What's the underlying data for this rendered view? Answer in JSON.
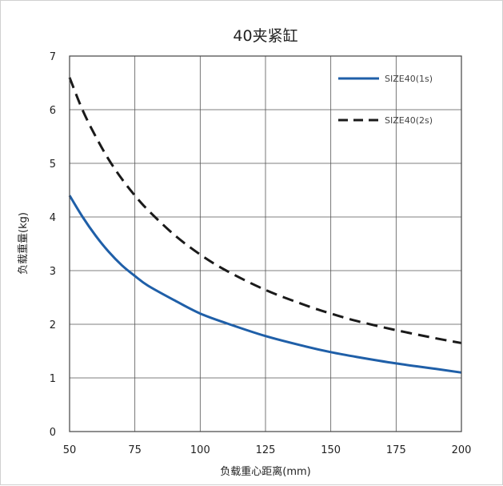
{
  "chart_data": {
    "type": "line",
    "title": "40夹紧缸",
    "xlabel": "负载重心距离(mm)",
    "ylabel": "负载重量(kg)",
    "xlim": [
      50,
      200
    ],
    "ylim": [
      0,
      7
    ],
    "x_ticks": [
      "50",
      "75",
      "100",
      "125",
      "150",
      "175",
      "200"
    ],
    "y_ticks": [
      "0",
      "1",
      "2",
      "3",
      "4",
      "5",
      "6",
      "7"
    ],
    "grid": true,
    "legend_position": "top-right",
    "series": [
      {
        "name": "SIZE40(1s)",
        "style": "solid",
        "color": "#1f5fa8",
        "x": [
          50,
          55,
          60,
          65,
          70,
          75,
          80,
          90,
          100,
          110,
          125,
          140,
          150,
          160,
          175,
          190,
          200
        ],
        "y": [
          4.4,
          4.0,
          3.65,
          3.35,
          3.1,
          2.9,
          2.72,
          2.45,
          2.2,
          2.02,
          1.78,
          1.59,
          1.48,
          1.39,
          1.27,
          1.17,
          1.1
        ]
      },
      {
        "name": "SIZE40(2s)",
        "style": "dashed",
        "color": "#1a1a1a",
        "x": [
          50,
          55,
          60,
          65,
          70,
          75,
          80,
          90,
          100,
          110,
          125,
          140,
          150,
          160,
          175,
          190,
          200
        ],
        "y": [
          6.6,
          5.99,
          5.5,
          5.07,
          4.71,
          4.4,
          4.13,
          3.67,
          3.3,
          3.0,
          2.64,
          2.36,
          2.2,
          2.06,
          1.89,
          1.74,
          1.65
        ]
      }
    ]
  }
}
